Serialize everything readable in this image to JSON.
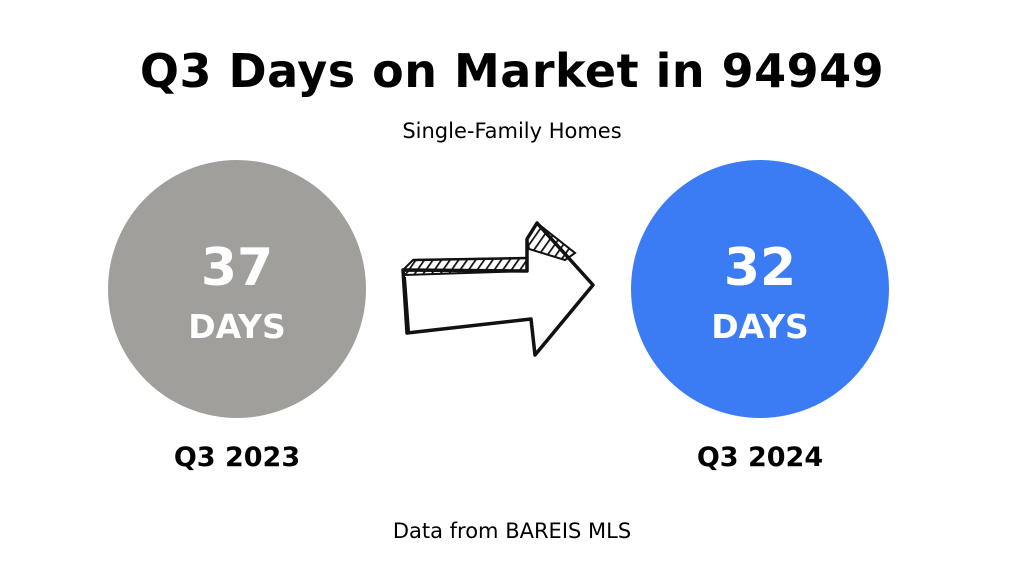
{
  "title": "Q3 Days on Market in 94949",
  "subtitle": "Single-Family Homes",
  "before": {
    "value": "37",
    "unit": "DAYS",
    "period": "Q3 2023",
    "color": "#a19f9c"
  },
  "after": {
    "value": "32",
    "unit": "DAYS",
    "period": "Q3 2024",
    "color": "#3b7cf5"
  },
  "arrow_icon": "hand-drawn-right-arrow-icon",
  "footer": "Data from BAREIS MLS"
}
